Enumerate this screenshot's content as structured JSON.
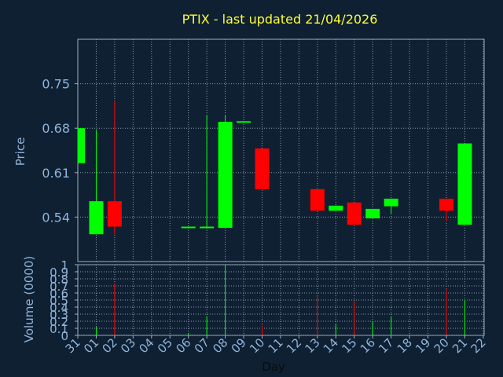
{
  "chart_data": {
    "type": "candlestick",
    "title": "PTIX - last updated 21/04/2026",
    "xlabel": "Day",
    "price_panel": {
      "ylabel": "Price",
      "yticks": [
        0.54,
        0.61,
        0.68,
        0.75
      ],
      "ytick_labels": [
        "0.54",
        "0.61",
        "0.68",
        "0.75"
      ],
      "ylim": [
        0.47,
        0.82
      ]
    },
    "volume_panel": {
      "ylabel": "Volume (0000)",
      "yticks": [
        0,
        0.1,
        0.2,
        0.3,
        0.4,
        0.5,
        0.6,
        0.7,
        0.8,
        0.9,
        1
      ],
      "ytick_labels": [
        "0",
        "0.1",
        "0.2",
        "0.3",
        "0.4",
        "0.5",
        "0.6",
        "0.7",
        "0.8",
        "0.9",
        "1"
      ],
      "ylim": [
        0,
        1
      ]
    },
    "x_categories": [
      "31",
      "01",
      "02",
      "03",
      "04",
      "05",
      "06",
      "07",
      "08",
      "09",
      "10",
      "11",
      "12",
      "13",
      "14",
      "15",
      "16",
      "17",
      "18",
      "19",
      "20",
      "21",
      "22"
    ],
    "grid": true,
    "colors": {
      "up": "#00ff00",
      "down": "#ff0000",
      "background": "#0f2033",
      "title": "#ffff33",
      "axis_text": "#8fb4d8",
      "grid": "#8a9bb0"
    },
    "candles": [
      {
        "day": "31",
        "open": 0.625,
        "close": 0.68,
        "high": 0.68,
        "low": 0.625,
        "volume": 0.0
      },
      {
        "day": "01",
        "open": 0.513,
        "close": 0.565,
        "high": 0.677,
        "low": 0.513,
        "volume": 0.12
      },
      {
        "day": "02",
        "open": 0.565,
        "close": 0.525,
        "high": 0.723,
        "low": 0.513,
        "volume": 0.73
      },
      {
        "day": "06",
        "open": 0.523,
        "close": 0.525,
        "high": 0.525,
        "low": 0.523,
        "volume": 0.03
      },
      {
        "day": "07",
        "open": 0.523,
        "close": 0.525,
        "high": 0.7,
        "low": 0.522,
        "volume": 0.27
      },
      {
        "day": "08",
        "open": 0.523,
        "close": 0.69,
        "high": 0.7,
        "low": 0.523,
        "volume": 1.0
      },
      {
        "day": "09",
        "open": 0.689,
        "close": 0.691,
        "high": 0.691,
        "low": 0.689,
        "volume": 0.0
      },
      {
        "day": "10",
        "open": 0.648,
        "close": 0.584,
        "high": 0.648,
        "low": 0.584,
        "volume": 0.14
      },
      {
        "day": "13",
        "open": 0.584,
        "close": 0.55,
        "high": 0.584,
        "low": 0.55,
        "volume": 0.56
      },
      {
        "day": "14",
        "open": 0.55,
        "close": 0.558,
        "high": 0.558,
        "low": 0.55,
        "volume": 0.16
      },
      {
        "day": "15",
        "open": 0.563,
        "close": 0.528,
        "high": 0.563,
        "low": 0.528,
        "volume": 0.48
      },
      {
        "day": "16",
        "open": 0.538,
        "close": 0.553,
        "high": 0.553,
        "low": 0.538,
        "volume": 0.2
      },
      {
        "day": "17",
        "open": 0.557,
        "close": 0.569,
        "high": 0.569,
        "low": 0.545,
        "volume": 0.27
      },
      {
        "day": "20",
        "open": 0.569,
        "close": 0.55,
        "high": 0.569,
        "low": 0.533,
        "volume": 0.66
      },
      {
        "day": "21",
        "open": 0.528,
        "close": 0.656,
        "high": 0.656,
        "low": 0.528,
        "volume": 0.5
      }
    ]
  }
}
